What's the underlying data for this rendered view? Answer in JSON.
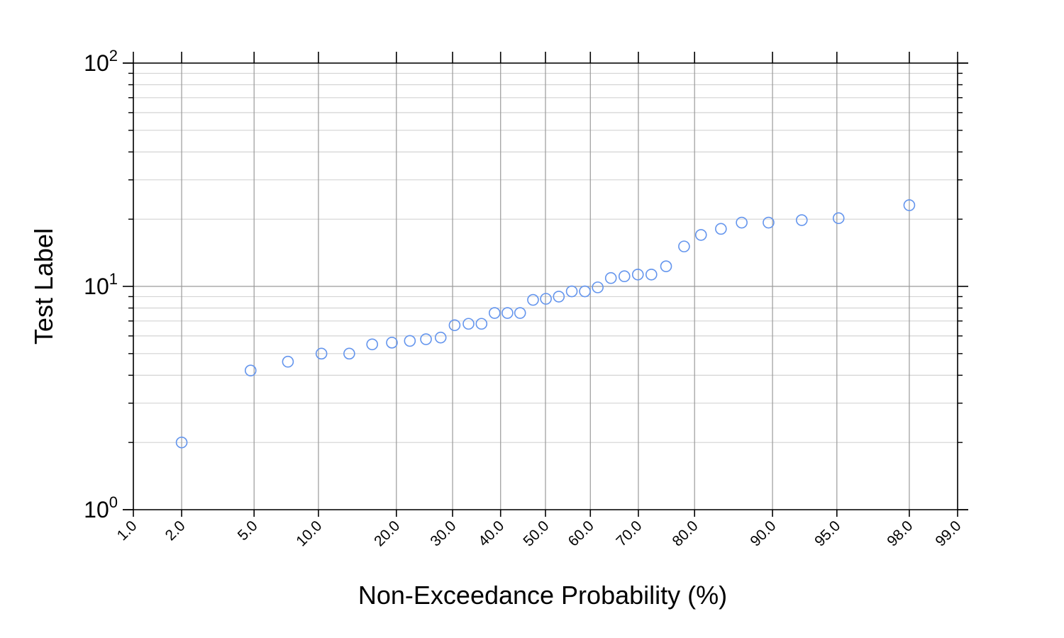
{
  "chart_data": {
    "type": "scatter",
    "xlabel": "Non-Exceedance Probability (%)",
    "ylabel": "Test Label",
    "x_scale": "normal-probability",
    "y_scale": "log",
    "xlim": [
      1.0,
      99.0
    ],
    "ylim": [
      1,
      100
    ],
    "x_ticks": [
      1.0,
      2.0,
      5.0,
      10.0,
      20.0,
      30.0,
      40.0,
      50.0,
      60.0,
      70.0,
      80.0,
      90.0,
      95.0,
      98.0,
      99.0
    ],
    "x_tick_labels": [
      "1.0",
      "2.0",
      "5.0",
      "10.0",
      "20.0",
      "30.0",
      "40.0",
      "50.0",
      "60.0",
      "70.0",
      "80.0",
      "90.0",
      "95.0",
      "98.0",
      "99.0"
    ],
    "y_tick_labels": [
      {
        "base": "10",
        "exp": "0"
      },
      {
        "base": "10",
        "exp": "1"
      },
      {
        "base": "10",
        "exp": "2"
      }
    ],
    "grid": true,
    "marker": "open-circle",
    "marker_color": "#6495ED",
    "series": [
      {
        "x": [
          2.0,
          4.8,
          7.3,
          10.3,
          13.4,
          16.4,
          19.3,
          22.2,
          25.0,
          27.7,
          30.4,
          33.2,
          35.9,
          38.7,
          41.5,
          44.3,
          47.2,
          50.1,
          53.0,
          55.9,
          58.8,
          61.6,
          64.4,
          67.2,
          69.9,
          72.5,
          75.2,
          78.3,
          81.0,
          83.9,
          86.6,
          89.6,
          92.6,
          95.1,
          98.0
        ],
        "y": [
          2.0,
          4.2,
          4.6,
          5.0,
          5.0,
          5.5,
          5.6,
          5.7,
          5.8,
          5.9,
          6.7,
          6.8,
          6.8,
          7.6,
          7.6,
          7.6,
          8.7,
          8.8,
          9.0,
          9.5,
          9.5,
          9.9,
          10.9,
          11.1,
          11.3,
          11.3,
          12.3,
          15.1,
          17.0,
          18.1,
          19.3,
          19.3,
          19.8,
          20.2,
          23.1
        ]
      }
    ]
  }
}
